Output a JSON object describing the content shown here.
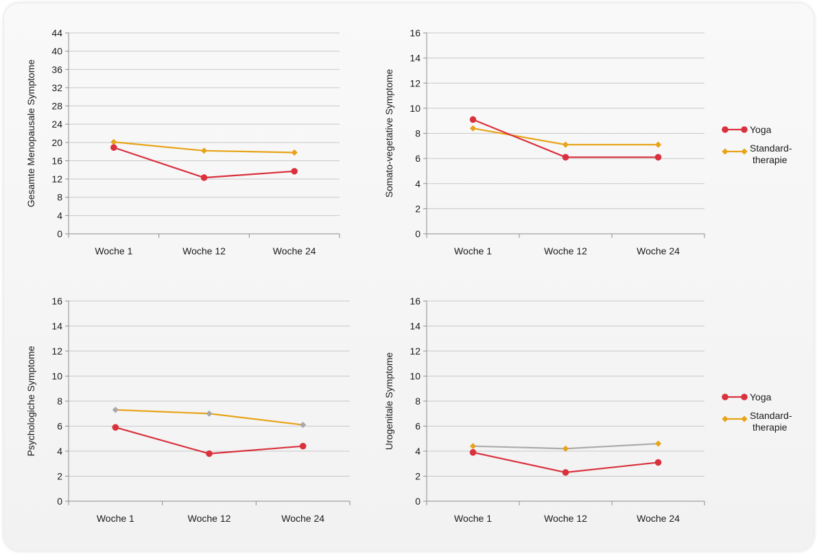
{
  "colors": {
    "yoga": "#d9313d",
    "standard": "#e8a318",
    "grey_marker": "#a8a8a8",
    "grey_line": "#aaaaaa",
    "grid": "#c8c8c8",
    "axis": "#8c8c8c"
  },
  "legend": {
    "yoga": "Yoga",
    "standard_line1": "Standard-",
    "standard_line2": "therapie"
  },
  "chart_data": [
    {
      "type": "line",
      "categories": [
        "Woche 1",
        "Woche 12",
        "Woche 24"
      ],
      "ylabel": "Gesamte Menopausale Symptome",
      "ylim": [
        0,
        44
      ],
      "yticks": [
        0,
        4,
        8,
        12,
        16,
        20,
        24,
        28,
        32,
        36,
        40,
        44
      ],
      "series": [
        {
          "name": "Yoga",
          "values": [
            18.9,
            12.3,
            13.7
          ],
          "color": "#d9313d",
          "marker": "circle"
        },
        {
          "name": "Standardtherapie",
          "values": [
            20.1,
            18.2,
            17.8
          ],
          "color": "#e8a318",
          "marker": "diamond"
        }
      ],
      "legend": false
    },
    {
      "type": "line",
      "categories": [
        "Woche 1",
        "Woche 12",
        "Woche 24"
      ],
      "ylabel": "Somato-vegetative Symptome",
      "ylim": [
        0,
        16
      ],
      "yticks": [
        0,
        2,
        4,
        6,
        8,
        10,
        12,
        14,
        16
      ],
      "series": [
        {
          "name": "Yoga",
          "values": [
            9.1,
            6.1,
            6.1
          ],
          "color": "#d9313d",
          "marker": "circle"
        },
        {
          "name": "Standardtherapie",
          "values": [
            8.4,
            7.1,
            7.1
          ],
          "color": "#e8a318",
          "marker": "diamond"
        }
      ],
      "legend": true
    },
    {
      "type": "line",
      "categories": [
        "Woche 1",
        "Woche 12",
        "Woche 24"
      ],
      "ylabel": "Psychologiche Symptome",
      "ylim": [
        0,
        16
      ],
      "yticks": [
        0,
        2,
        4,
        6,
        8,
        10,
        12,
        14,
        16
      ],
      "series": [
        {
          "name": "Yoga",
          "values": [
            5.9,
            3.8,
            4.4
          ],
          "color": "#d9313d",
          "marker": "circle"
        },
        {
          "name": "Standardtherapie",
          "values": [
            7.3,
            7.0,
            6.1
          ],
          "color": "#e8a318",
          "marker": "diamond",
          "marker_color": "#a8a8a8"
        }
      ],
      "legend": false
    },
    {
      "type": "line",
      "categories": [
        "Woche 1",
        "Woche 12",
        "Woche 24"
      ],
      "ylabel": "Urogenitale Symptome",
      "ylim": [
        0,
        16
      ],
      "yticks": [
        0,
        2,
        4,
        6,
        8,
        10,
        12,
        14,
        16
      ],
      "series": [
        {
          "name": "Yoga",
          "values": [
            3.9,
            2.3,
            3.1
          ],
          "color": "#d9313d",
          "marker": "circle"
        },
        {
          "name": "Standardtherapie",
          "values": [
            4.4,
            4.2,
            4.6
          ],
          "color": "#aaaaaa",
          "marker": "diamond",
          "marker_color": "#e8a318"
        }
      ],
      "legend": true
    }
  ]
}
